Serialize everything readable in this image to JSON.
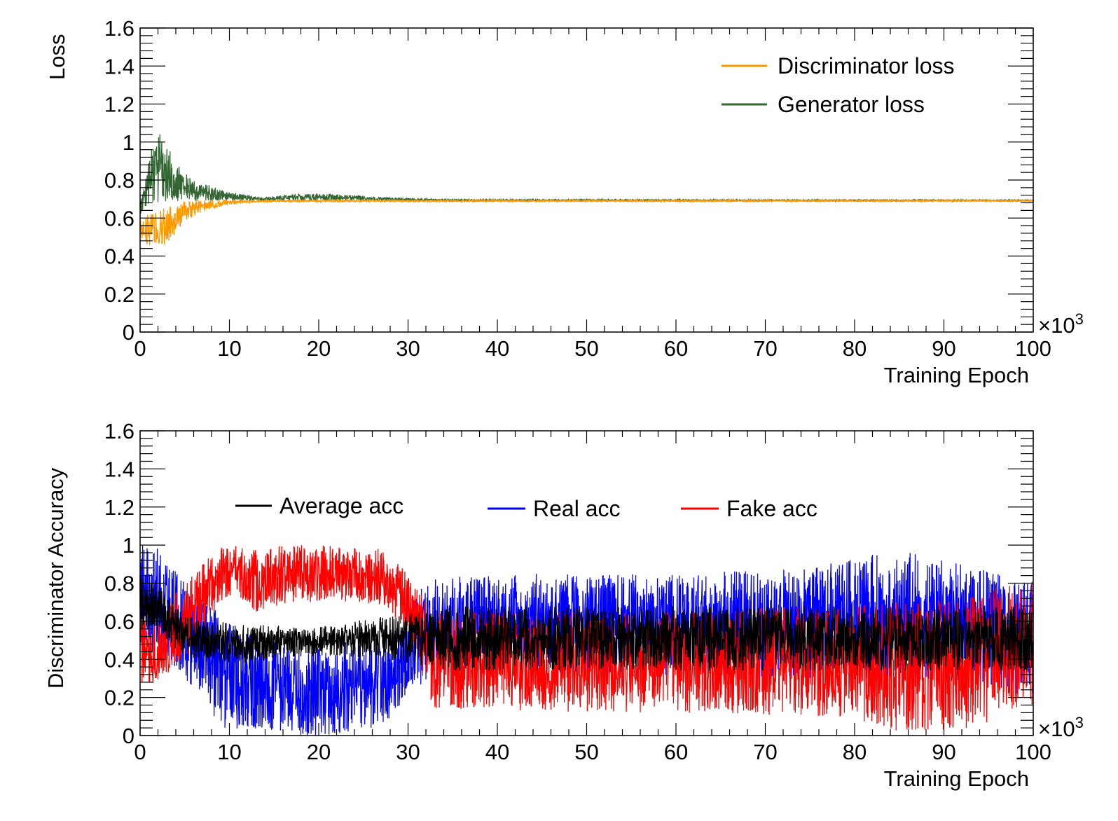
{
  "chart_data": [
    {
      "type": "line",
      "ylabel": "Loss",
      "xlabel": "Training Epoch",
      "x_multiplier": "×10",
      "x_multiplier_exp": "3",
      "xlim": [
        0,
        100
      ],
      "ylim": [
        0,
        1.6
      ],
      "x_ticks": [
        "0",
        "10",
        "20",
        "30",
        "40",
        "50",
        "60",
        "70",
        "80",
        "90",
        "100"
      ],
      "y_ticks": [
        "0",
        "0.2",
        "0.4",
        "0.6",
        "0.8",
        "1",
        "1.2",
        "1.4",
        "1.6"
      ],
      "legend_position": "top-right",
      "series": [
        {
          "name": "Generator loss",
          "color": "#336633",
          "envelope": [
            {
              "x": 0,
              "lo": 0.62,
              "hi": 0.7
            },
            {
              "x": 0.5,
              "lo": 0.64,
              "hi": 0.78
            },
            {
              "x": 1,
              "lo": 0.66,
              "hi": 0.92
            },
            {
              "x": 1.5,
              "lo": 0.66,
              "hi": 1.0
            },
            {
              "x": 2,
              "lo": 0.67,
              "hi": 1.07
            },
            {
              "x": 2.5,
              "lo": 0.68,
              "hi": 1.04
            },
            {
              "x": 3,
              "lo": 0.68,
              "hi": 0.98
            },
            {
              "x": 4,
              "lo": 0.69,
              "hi": 0.9
            },
            {
              "x": 5,
              "lo": 0.69,
              "hi": 0.84
            },
            {
              "x": 6,
              "lo": 0.69,
              "hi": 0.8
            },
            {
              "x": 8,
              "lo": 0.69,
              "hi": 0.77
            },
            {
              "x": 10,
              "lo": 0.69,
              "hi": 0.74
            },
            {
              "x": 12,
              "lo": 0.69,
              "hi": 0.72
            },
            {
              "x": 14,
              "lo": 0.69,
              "hi": 0.71
            },
            {
              "x": 16,
              "lo": 0.69,
              "hi": 0.72
            },
            {
              "x": 19,
              "lo": 0.69,
              "hi": 0.73
            },
            {
              "x": 22,
              "lo": 0.69,
              "hi": 0.725
            },
            {
              "x": 26,
              "lo": 0.69,
              "hi": 0.715
            },
            {
              "x": 30,
              "lo": 0.69,
              "hi": 0.705
            },
            {
              "x": 35,
              "lo": 0.69,
              "hi": 0.698
            },
            {
              "x": 100,
              "lo": 0.69,
              "hi": 0.695
            }
          ]
        },
        {
          "name": "Discriminator loss",
          "color": "#ff9900",
          "envelope": [
            {
              "x": 0,
              "lo": 0.5,
              "hi": 0.62
            },
            {
              "x": 0.5,
              "lo": 0.46,
              "hi": 0.62
            },
            {
              "x": 1,
              "lo": 0.44,
              "hi": 0.62
            },
            {
              "x": 2,
              "lo": 0.43,
              "hi": 0.64
            },
            {
              "x": 3,
              "lo": 0.47,
              "hi": 0.66
            },
            {
              "x": 4,
              "lo": 0.52,
              "hi": 0.68
            },
            {
              "x": 5,
              "lo": 0.57,
              "hi": 0.69
            },
            {
              "x": 6,
              "lo": 0.61,
              "hi": 0.695
            },
            {
              "x": 8,
              "lo": 0.65,
              "hi": 0.695
            },
            {
              "x": 10,
              "lo": 0.67,
              "hi": 0.695
            },
            {
              "x": 12,
              "lo": 0.68,
              "hi": 0.695
            },
            {
              "x": 15,
              "lo": 0.685,
              "hi": 0.695
            },
            {
              "x": 100,
              "lo": 0.688,
              "hi": 0.695
            }
          ]
        }
      ]
    },
    {
      "type": "line",
      "ylabel": "Discriminator Accuracy",
      "xlabel": "Training Epoch",
      "x_multiplier": "×10",
      "x_multiplier_exp": "3",
      "xlim": [
        0,
        100
      ],
      "ylim": [
        0,
        1.6
      ],
      "x_ticks": [
        "0",
        "10",
        "20",
        "30",
        "40",
        "50",
        "60",
        "70",
        "80",
        "90",
        "100"
      ],
      "y_ticks": [
        "0",
        "0.2",
        "0.4",
        "0.6",
        "0.8",
        "1",
        "1.2",
        "1.4",
        "1.6"
      ],
      "legend_position": "top",
      "series": [
        {
          "name": "Real acc",
          "color": "#0000ff",
          "envelope": [
            {
              "x": 0,
              "lo": 0.4,
              "hi": 1.0
            },
            {
              "x": 2,
              "lo": 0.45,
              "hi": 1.0
            },
            {
              "x": 3,
              "lo": 0.4,
              "hi": 0.95
            },
            {
              "x": 5,
              "lo": 0.3,
              "hi": 0.82
            },
            {
              "x": 7,
              "lo": 0.18,
              "hi": 0.72
            },
            {
              "x": 9,
              "lo": 0.05,
              "hi": 0.65
            },
            {
              "x": 11,
              "lo": 0.0,
              "hi": 0.55
            },
            {
              "x": 13,
              "lo": 0.03,
              "hi": 0.55
            },
            {
              "x": 15,
              "lo": 0.02,
              "hi": 0.5
            },
            {
              "x": 18,
              "lo": 0.0,
              "hi": 0.48
            },
            {
              "x": 21,
              "lo": 0.0,
              "hi": 0.48
            },
            {
              "x": 24,
              "lo": 0.02,
              "hi": 0.5
            },
            {
              "x": 27,
              "lo": 0.05,
              "hi": 0.52
            },
            {
              "x": 29,
              "lo": 0.12,
              "hi": 0.6
            },
            {
              "x": 31,
              "lo": 0.25,
              "hi": 0.75
            },
            {
              "x": 33,
              "lo": 0.32,
              "hi": 0.85
            },
            {
              "x": 60,
              "lo": 0.32,
              "hi": 0.85
            },
            {
              "x": 75,
              "lo": 0.3,
              "hi": 0.88
            },
            {
              "x": 85,
              "lo": 0.28,
              "hi": 0.98
            },
            {
              "x": 92,
              "lo": 0.28,
              "hi": 0.9
            },
            {
              "x": 100,
              "lo": 0.2,
              "hi": 0.8
            }
          ]
        },
        {
          "name": "Fake acc",
          "color": "#ff0000",
          "envelope": [
            {
              "x": 0,
              "lo": 0.25,
              "hi": 0.65
            },
            {
              "x": 2,
              "lo": 0.28,
              "hi": 0.62
            },
            {
              "x": 3,
              "lo": 0.3,
              "hi": 0.7
            },
            {
              "x": 5,
              "lo": 0.4,
              "hi": 0.8
            },
            {
              "x": 7,
              "lo": 0.55,
              "hi": 0.9
            },
            {
              "x": 9,
              "lo": 0.7,
              "hi": 1.0
            },
            {
              "x": 11,
              "lo": 0.72,
              "hi": 1.0
            },
            {
              "x": 13,
              "lo": 0.65,
              "hi": 0.98
            },
            {
              "x": 15,
              "lo": 0.68,
              "hi": 1.0
            },
            {
              "x": 18,
              "lo": 0.7,
              "hi": 1.0
            },
            {
              "x": 21,
              "lo": 0.7,
              "hi": 1.0
            },
            {
              "x": 24,
              "lo": 0.7,
              "hi": 0.99
            },
            {
              "x": 27,
              "lo": 0.68,
              "hi": 0.98
            },
            {
              "x": 29,
              "lo": 0.6,
              "hi": 0.9
            },
            {
              "x": 31,
              "lo": 0.4,
              "hi": 0.8
            },
            {
              "x": 33,
              "lo": 0.12,
              "hi": 0.65
            },
            {
              "x": 60,
              "lo": 0.12,
              "hi": 0.65
            },
            {
              "x": 75,
              "lo": 0.1,
              "hi": 0.68
            },
            {
              "x": 85,
              "lo": 0.02,
              "hi": 0.7
            },
            {
              "x": 92,
              "lo": 0.02,
              "hi": 0.72
            },
            {
              "x": 100,
              "lo": 0.15,
              "hi": 0.85
            }
          ]
        },
        {
          "name": "Average acc",
          "color": "#000000",
          "envelope": [
            {
              "x": 0,
              "lo": 0.55,
              "hi": 0.85
            },
            {
              "x": 2,
              "lo": 0.55,
              "hi": 0.8
            },
            {
              "x": 4,
              "lo": 0.45,
              "hi": 0.68
            },
            {
              "x": 6,
              "lo": 0.4,
              "hi": 0.62
            },
            {
              "x": 9,
              "lo": 0.38,
              "hi": 0.6
            },
            {
              "x": 12,
              "lo": 0.38,
              "hi": 0.58
            },
            {
              "x": 15,
              "lo": 0.4,
              "hi": 0.58
            },
            {
              "x": 20,
              "lo": 0.42,
              "hi": 0.57
            },
            {
              "x": 25,
              "lo": 0.41,
              "hi": 0.61
            },
            {
              "x": 30,
              "lo": 0.38,
              "hi": 0.64
            },
            {
              "x": 35,
              "lo": 0.34,
              "hi": 0.68
            },
            {
              "x": 100,
              "lo": 0.34,
              "hi": 0.68
            }
          ]
        }
      ]
    }
  ]
}
